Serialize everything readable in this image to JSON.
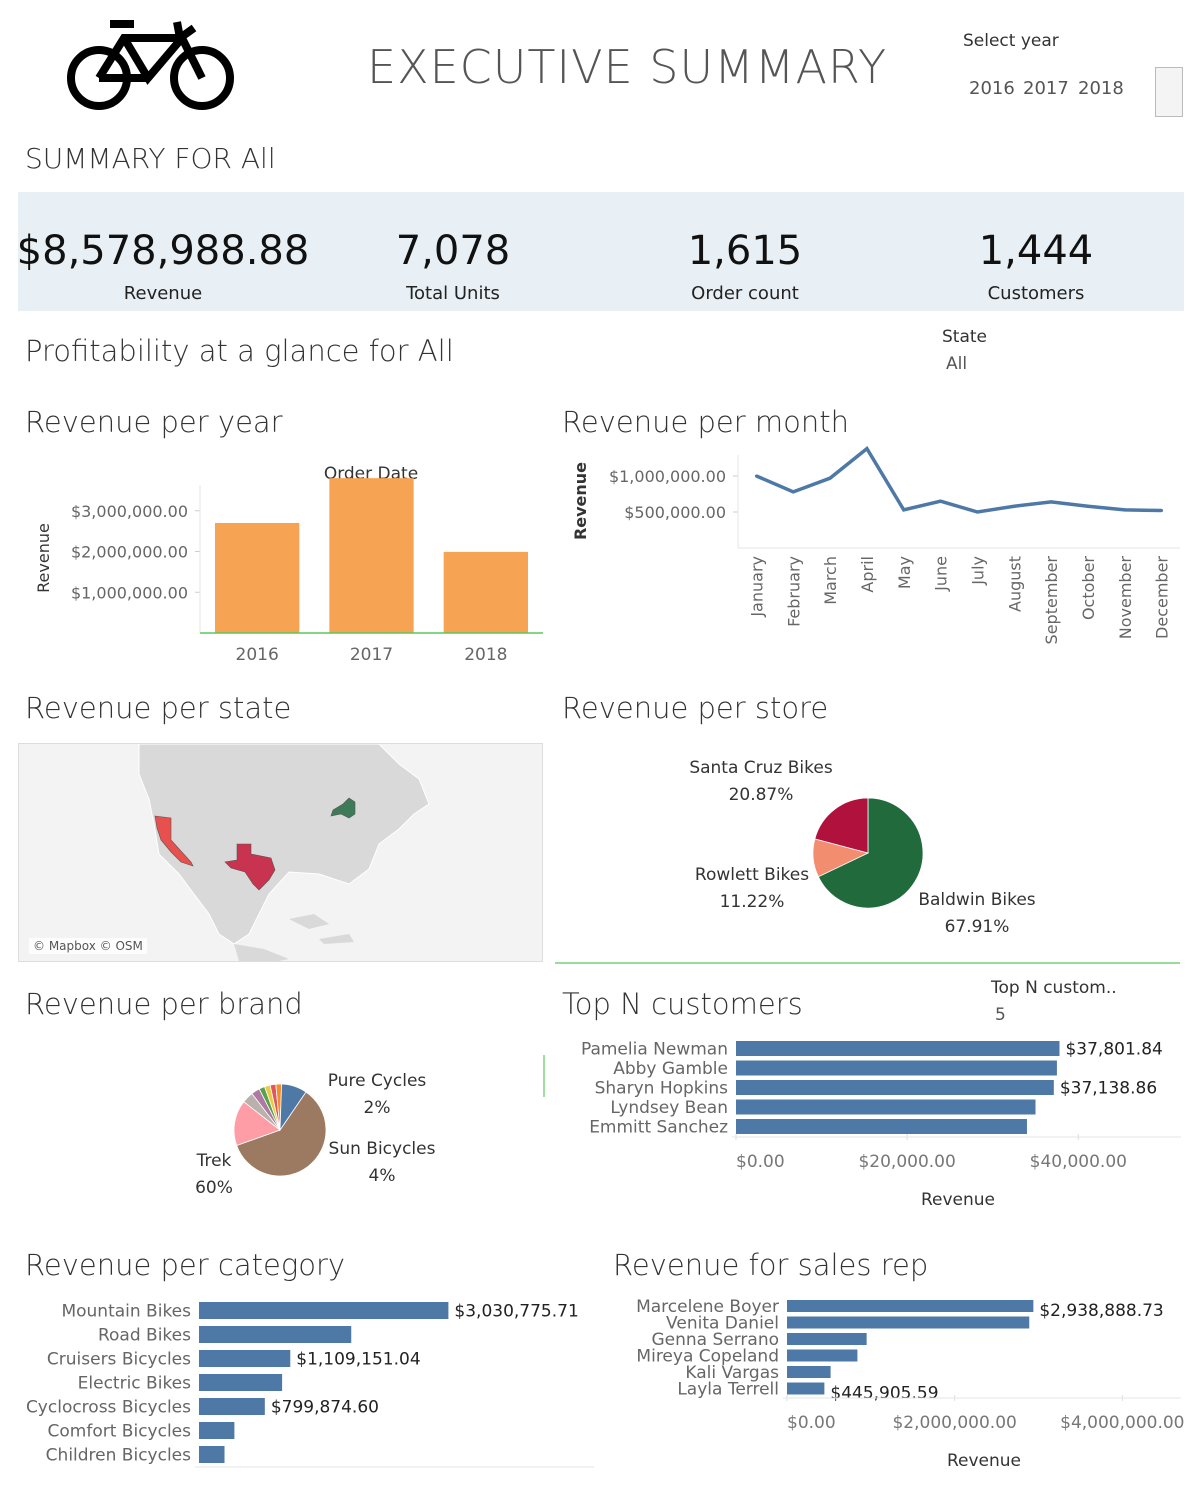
{
  "header": {
    "title": "EXECUTIVE SUMMARY",
    "select_year_label": "Select year",
    "years": [
      "2016",
      "2017",
      "2018"
    ]
  },
  "summary": {
    "title": "SUMMARY FOR All",
    "kpis": [
      {
        "value": "$8,578,988.88",
        "label": "Revenue"
      },
      {
        "value": "7,078",
        "label": "Total Units"
      },
      {
        "value": "1,615",
        "label": "Order count"
      },
      {
        "value": "1,444",
        "label": "Customers"
      }
    ]
  },
  "profitability": {
    "title": "Profitability at a glance for All",
    "state_label": "State",
    "state_value": "All"
  },
  "sections": {
    "revenue_per_year": "Revenue per year",
    "revenue_per_month": "Revenue per month",
    "revenue_per_state": "Revenue per state",
    "revenue_per_store": "Revenue per store",
    "revenue_per_brand": "Revenue per brand",
    "top_n_customers": "Top N customers",
    "revenue_per_category": "Revenue per category",
    "revenue_for_sales_rep": "Revenue for sales rep"
  },
  "map": {
    "credit": "© Mapbox © OSM"
  },
  "topn": {
    "label": "Top N custom..",
    "value": "5"
  },
  "colors": {
    "orange": "#f7a354",
    "blue": "#4e79a7",
    "green": "#216a3c",
    "crimson": "#b0123d",
    "salmon": "#f38d6f",
    "tx": "#c8334f",
    "ca": "#e8504e",
    "ny": "#3d7a58"
  },
  "chart_data": [
    {
      "id": "year",
      "type": "bar",
      "title": "Order Date",
      "ylabel": "Revenue",
      "categories": [
        "2016",
        "2017",
        "2018"
      ],
      "values": [
        2700000,
        3800000,
        1990000
      ],
      "yticks": [
        "$1,000,000.00",
        "$2,000,000.00",
        "$3,000,000.00"
      ],
      "ytick_values": [
        1000000,
        2000000,
        3000000
      ],
      "ylim": [
        0,
        4000000
      ]
    },
    {
      "id": "month",
      "type": "line",
      "ylabel": "Revenue",
      "categories": [
        "January",
        "February",
        "March",
        "April",
        "May",
        "June",
        "July",
        "August",
        "September",
        "October",
        "November",
        "December"
      ],
      "values": [
        1000000,
        780000,
        970000,
        1380000,
        530000,
        650000,
        500000,
        580000,
        640000,
        580000,
        530000,
        520000
      ],
      "yticks": [
        "$500,000.00",
        "$1,000,000.00"
      ],
      "ytick_values": [
        500000,
        1000000
      ],
      "ylim": [
        0,
        1500000
      ]
    },
    {
      "id": "store",
      "type": "pie",
      "slices": [
        {
          "name": "Baldwin Bikes",
          "pct": "67.91%",
          "value": 67.91
        },
        {
          "name": "Rowlett Bikes",
          "pct": "11.22%",
          "value": 11.22
        },
        {
          "name": "Santa Cruz Bikes",
          "pct": "20.87%",
          "value": 20.87
        }
      ]
    },
    {
      "id": "brand",
      "type": "pie",
      "slices": [
        {
          "name": "Trek",
          "pct": "60%",
          "value": 60
        },
        {
          "name": "",
          "pct": "",
          "value": 16
        },
        {
          "name": "Sun Bicycles",
          "pct": "4%",
          "value": 4
        },
        {
          "name": "",
          "pct": "",
          "value": 3
        },
        {
          "name": "",
          "pct": "",
          "value": 2
        },
        {
          "name": "",
          "pct": "",
          "value": 2
        },
        {
          "name": "Pure Cycles",
          "pct": "2%",
          "value": 2
        },
        {
          "name": "",
          "pct": "",
          "value": 2
        },
        {
          "name": "",
          "pct": "",
          "value": 9
        }
      ]
    },
    {
      "id": "customers",
      "type": "bar",
      "orientation": "horizontal",
      "xlabel": "Revenue",
      "categories": [
        "Pamelia Newman",
        "Abby Gamble",
        "Sharyn Hopkins",
        "Lyndsey Bean",
        "Emmitt Sanchez"
      ],
      "values": [
        37801.84,
        37500,
        37138.86,
        35000,
        34000
      ],
      "labels": [
        "$37,801.84",
        "",
        "$37,138.86",
        "",
        ""
      ],
      "xticks": [
        "$0.00",
        "$20,000.00",
        "$40,000.00"
      ],
      "xtick_values": [
        0,
        20000,
        40000
      ],
      "xlim": [
        0,
        52000
      ]
    },
    {
      "id": "category",
      "type": "bar",
      "orientation": "horizontal",
      "categories": [
        "Mountain Bikes",
        "Road Bikes",
        "Cruisers Bicycles",
        "Electric Bikes",
        "Cyclocross Bicycles",
        "Comfort Bicycles",
        "Children Bicycles"
      ],
      "values": [
        3030775.71,
        1850000,
        1109151.04,
        1010000,
        799874.6,
        430000,
        310000
      ],
      "labels": [
        "$3,030,775.71",
        "",
        "$1,109,151.04",
        "",
        "$799,874.60",
        "",
        ""
      ],
      "xlim": [
        0,
        4800000
      ]
    },
    {
      "id": "salesrep",
      "type": "bar",
      "orientation": "horizontal",
      "xlabel": "Revenue",
      "categories": [
        "Marcelene Boyer",
        "Venita Daniel",
        "Genna Serrano",
        "Mireya Copeland",
        "Kali Vargas",
        "Layla Terrell"
      ],
      "values": [
        2938888.73,
        2890000,
        950000,
        840000,
        520000,
        445905.59
      ],
      "labels": [
        "$2,938,888.73",
        "",
        "",
        "",
        "",
        "$445,905.59"
      ],
      "xticks": [
        "$0.00",
        "$2,000,000.00",
        "$4,000,000.00"
      ],
      "xtick_values": [
        0,
        2000000,
        4000000
      ],
      "xlim": [
        0,
        4700000
      ]
    }
  ]
}
